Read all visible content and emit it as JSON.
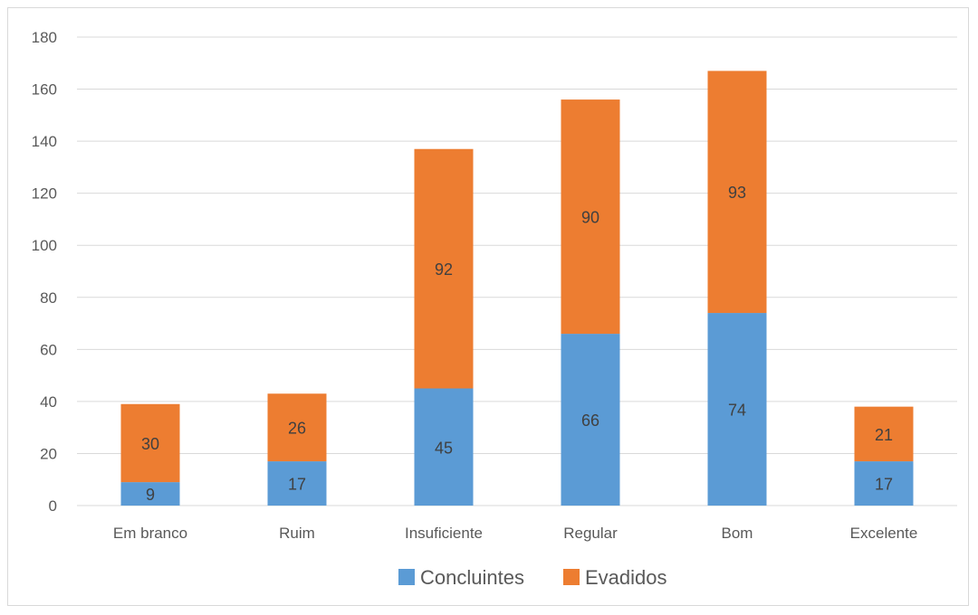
{
  "chart_data": {
    "type": "bar",
    "stacked": true,
    "categories": [
      "Em branco",
      "Ruim",
      "Insuficiente",
      "Regular",
      "Bom",
      "Excelente"
    ],
    "series": [
      {
        "name": "Concluintes",
        "color": "#5b9bd5",
        "values": [
          9,
          17,
          45,
          66,
          74,
          17
        ]
      },
      {
        "name": "Evadidos",
        "color": "#ed7d31",
        "values": [
          30,
          26,
          92,
          90,
          93,
          21
        ]
      }
    ],
    "ylim": [
      0,
      180
    ],
    "yticks": [
      0,
      20,
      40,
      60,
      80,
      100,
      120,
      140,
      160,
      180
    ],
    "grid": true,
    "data_labels": true,
    "legend_position": "bottom",
    "title": "",
    "xlabel": "",
    "ylabel": ""
  }
}
